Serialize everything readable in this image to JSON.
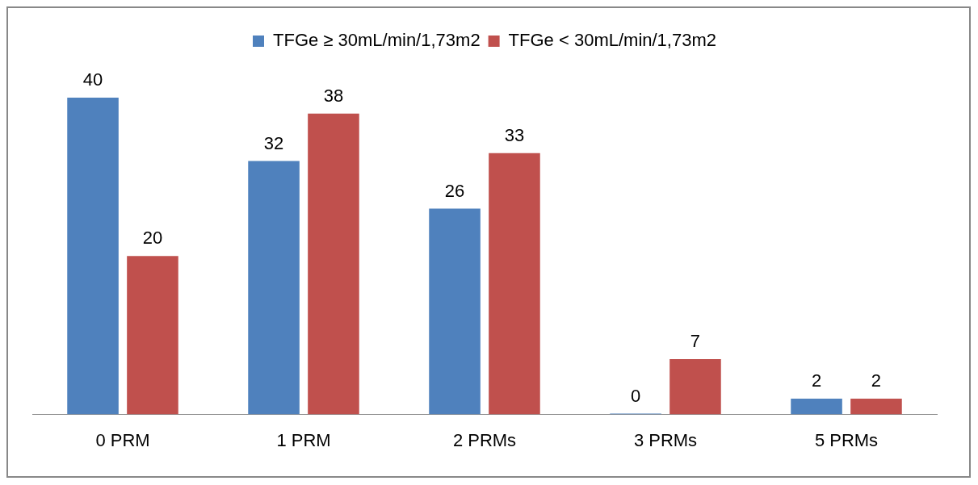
{
  "chart_data": {
    "type": "bar",
    "categories": [
      "0 PRM",
      "1 PRM",
      "2 PRMs",
      "3 PRMs",
      "5 PRMs"
    ],
    "series": [
      {
        "name": "TFGe ≥ 30mL/min/1,73m2",
        "color": "#4f81bd",
        "values": [
          40,
          32,
          26,
          0,
          2
        ]
      },
      {
        "name": "TFGe < 30mL/min/1,73m2",
        "color": "#c0504d",
        "values": [
          20,
          38,
          33,
          7,
          2
        ]
      }
    ],
    "data_labels": true,
    "legend": "top",
    "grid": false
  }
}
